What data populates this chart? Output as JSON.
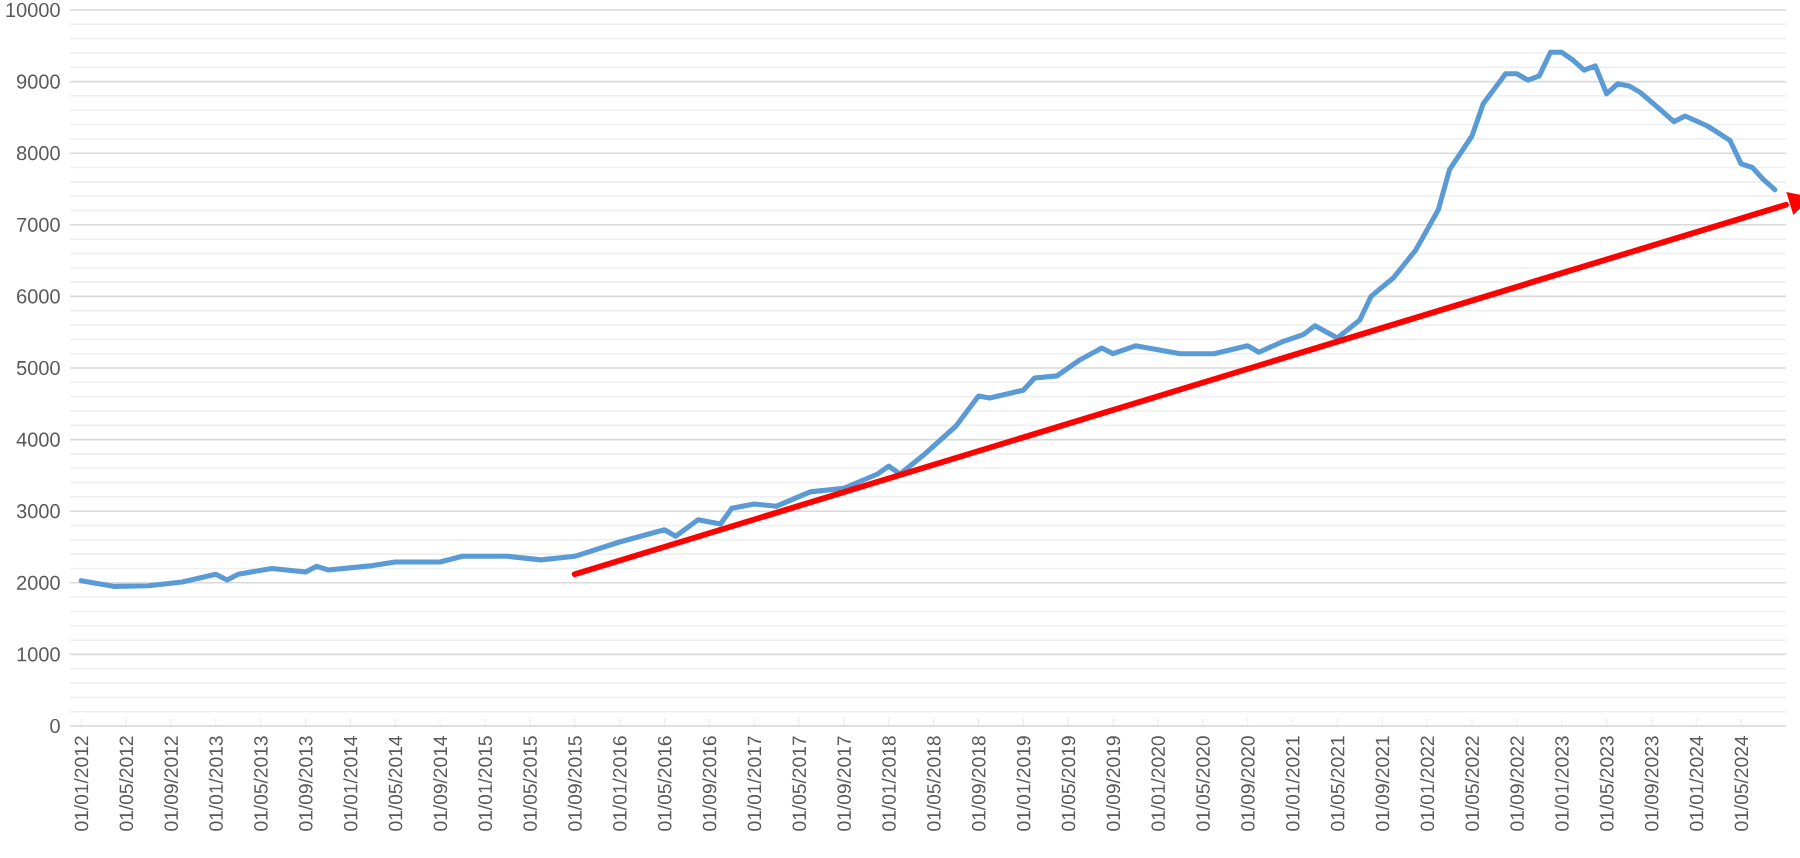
{
  "chart_data": {
    "type": "line",
    "x": [
      "2012-01",
      "2012-04",
      "2012-07",
      "2012-10",
      "2013-01",
      "2013-02",
      "2013-03",
      "2013-06",
      "2013-09",
      "2013-10",
      "2013-11",
      "2014-03",
      "2014-05",
      "2014-09",
      "2014-11",
      "2015-03",
      "2015-06",
      "2015-09",
      "2016-01",
      "2016-05",
      "2016-06",
      "2016-08",
      "2016-10",
      "2016-11",
      "2017-01",
      "2017-03",
      "2017-06",
      "2017-09",
      "2017-12",
      "2018-01",
      "2018-02",
      "2018-04",
      "2018-07",
      "2018-09",
      "2018-10",
      "2019-01",
      "2019-02",
      "2019-04",
      "2019-06",
      "2019-08",
      "2019-09",
      "2019-11",
      "2020-03",
      "2020-06",
      "2020-09",
      "2020-10",
      "2020-12",
      "2021-02",
      "2021-03",
      "2021-05",
      "2021-07",
      "2021-08",
      "2021-10",
      "2021-12",
      "2022-02",
      "2022-03",
      "2022-05",
      "2022-06",
      "2022-08",
      "2022-09",
      "2022-10",
      "2022-11",
      "2022-12",
      "2023-01",
      "2023-02",
      "2023-03",
      "2023-04",
      "2023-05",
      "2023-06",
      "2023-07",
      "2023-08",
      "2023-10",
      "2023-11",
      "2023-12",
      "2024-02",
      "2024-04",
      "2024-05",
      "2024-06",
      "2024-07",
      "2024-08"
    ],
    "series": [
      {
        "color": "#5b9bd5",
        "values": [
          2030,
          1950,
          1960,
          2010,
          2120,
          2040,
          2120,
          2200,
          2150,
          2230,
          2180,
          2240,
          2290,
          2290,
          2370,
          2370,
          2320,
          2370,
          2570,
          2740,
          2650,
          2880,
          2820,
          3040,
          3100,
          3070,
          3270,
          3320,
          3520,
          3630,
          3520,
          3770,
          4190,
          4610,
          4580,
          4690,
          4860,
          4890,
          5110,
          5280,
          5200,
          5310,
          5200,
          5200,
          5310,
          5220,
          5360,
          5470,
          5590,
          5420,
          5670,
          6000,
          6260,
          6650,
          7210,
          7770,
          8240,
          8690,
          9110,
          9110,
          9020,
          9080,
          9410,
          9410,
          9300,
          9160,
          9220,
          8830,
          8970,
          8940,
          8850,
          8580,
          8440,
          8520,
          8380,
          8180,
          7850,
          7800,
          7630,
          7490
        ]
      },
      {
        "type": "line",
        "color": "#ff0000",
        "x": [
          "2015-09",
          "2024-09"
        ],
        "values": [
          2120,
          7280
        ]
      }
    ],
    "xlim": [
      "2011-12",
      "2024-09"
    ],
    "xticks": [
      {
        "value": "2012-01",
        "label": "01/01/2012"
      },
      {
        "value": "2012-05",
        "label": "01/05/2012"
      },
      {
        "value": "2012-09",
        "label": "01/09/2012"
      },
      {
        "value": "2013-01",
        "label": "01/01/2013"
      },
      {
        "value": "2013-05",
        "label": "01/05/2013"
      },
      {
        "value": "2013-09",
        "label": "01/09/2013"
      },
      {
        "value": "2014-01",
        "label": "01/01/2014"
      },
      {
        "value": "2014-05",
        "label": "01/05/2014"
      },
      {
        "value": "2014-09",
        "label": "01/09/2014"
      },
      {
        "value": "2015-01",
        "label": "01/01/2015"
      },
      {
        "value": "2015-05",
        "label": "01/05/2015"
      },
      {
        "value": "2015-09",
        "label": "01/09/2015"
      },
      {
        "value": "2016-01",
        "label": "01/01/2016"
      },
      {
        "value": "2016-05",
        "label": "01/05/2016"
      },
      {
        "value": "2016-09",
        "label": "01/09/2016"
      },
      {
        "value": "2017-01",
        "label": "01/01/2017"
      },
      {
        "value": "2017-05",
        "label": "01/05/2017"
      },
      {
        "value": "2017-09",
        "label": "01/09/2017"
      },
      {
        "value": "2018-01",
        "label": "01/01/2018"
      },
      {
        "value": "2018-05",
        "label": "01/05/2018"
      },
      {
        "value": "2018-09",
        "label": "01/09/2018"
      },
      {
        "value": "2019-01",
        "label": "01/01/2019"
      },
      {
        "value": "2019-05",
        "label": "01/05/2019"
      },
      {
        "value": "2019-09",
        "label": "01/09/2019"
      },
      {
        "value": "2020-01",
        "label": "01/01/2020"
      },
      {
        "value": "2020-05",
        "label": "01/05/2020"
      },
      {
        "value": "2020-09",
        "label": "01/09/2020"
      },
      {
        "value": "2021-01",
        "label": "01/01/2021"
      },
      {
        "value": "2021-05",
        "label": "01/05/2021"
      },
      {
        "value": "2021-09",
        "label": "01/09/2021"
      },
      {
        "value": "2022-01",
        "label": "01/01/2022"
      },
      {
        "value": "2022-05",
        "label": "01/05/2022"
      },
      {
        "value": "2022-09",
        "label": "01/09/2022"
      },
      {
        "value": "2023-01",
        "label": "01/01/2023"
      },
      {
        "value": "2023-05",
        "label": "01/05/2023"
      },
      {
        "value": "2023-09",
        "label": "01/09/2023"
      },
      {
        "value": "2024-01",
        "label": "01/01/2024"
      },
      {
        "value": "2024-05",
        "label": "01/05/2024"
      }
    ],
    "ylim": [
      0,
      10000
    ],
    "yticks": [
      0,
      1000,
      2000,
      3000,
      4000,
      5000,
      6000,
      7000,
      8000,
      9000,
      10000
    ],
    "grid": "y"
  }
}
